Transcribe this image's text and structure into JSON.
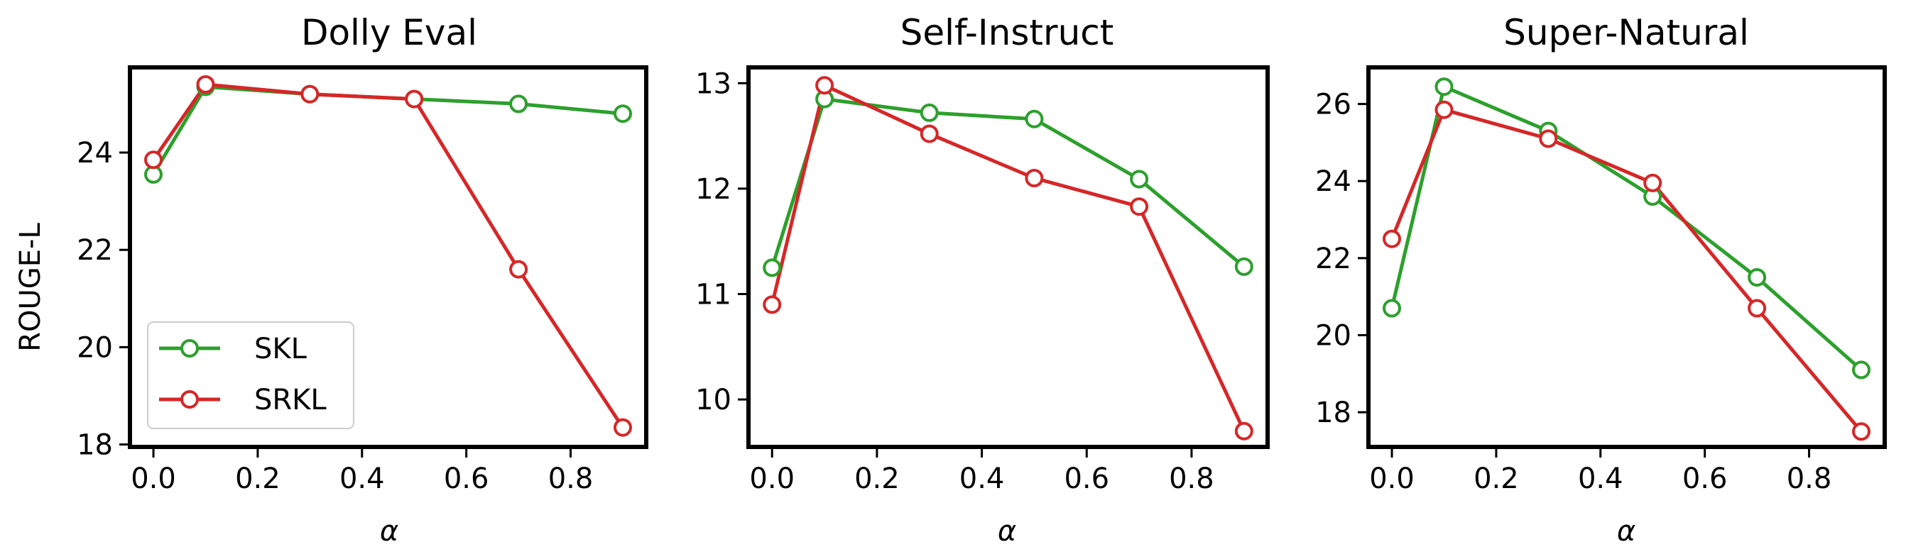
{
  "figure": {
    "ylabel": "ROUGE-L",
    "xlabel": "α"
  },
  "legend": {
    "entries": [
      {
        "name": "SKL",
        "color": "#2ca02c"
      },
      {
        "name": "SRKL",
        "color": "#d62728"
      }
    ]
  },
  "chart_data": [
    {
      "type": "line",
      "title": "Dolly Eval",
      "xlabel": "α",
      "ylabel": "ROUGE-L",
      "x": [
        0.0,
        0.1,
        0.3,
        0.5,
        0.7,
        0.9
      ],
      "xlim": [
        -0.045,
        0.945
      ],
      "ylim": [
        17.95,
        25.75
      ],
      "xticks": [
        0.0,
        0.2,
        0.4,
        0.6,
        0.8
      ],
      "xtick_labels": [
        "0.0",
        "0.2",
        "0.4",
        "0.6",
        "0.8"
      ],
      "yticks": [
        18,
        20,
        22,
        24
      ],
      "ytick_labels": [
        "18",
        "20",
        "22",
        "24"
      ],
      "legend": "lower-left",
      "grid": false,
      "series": [
        {
          "name": "SKL",
          "color": "#2ca02c",
          "values": [
            23.55,
            25.35,
            25.2,
            25.1,
            25.0,
            24.8
          ]
        },
        {
          "name": "SRKL",
          "color": "#d62728",
          "values": [
            23.85,
            25.4,
            25.2,
            25.1,
            21.6,
            18.35
          ]
        }
      ]
    },
    {
      "type": "line",
      "title": "Self-Instruct",
      "xlabel": "α",
      "ylabel": "",
      "x": [
        0.0,
        0.1,
        0.3,
        0.5,
        0.7,
        0.9
      ],
      "xlim": [
        -0.045,
        0.945
      ],
      "ylim": [
        9.55,
        13.15
      ],
      "xticks": [
        0.0,
        0.2,
        0.4,
        0.6,
        0.8
      ],
      "xtick_labels": [
        "0.0",
        "0.2",
        "0.4",
        "0.6",
        "0.8"
      ],
      "yticks": [
        10,
        11,
        12,
        13
      ],
      "ytick_labels": [
        "10",
        "11",
        "12",
        "13"
      ],
      "grid": false,
      "series": [
        {
          "name": "SKL",
          "color": "#2ca02c",
          "values": [
            11.25,
            12.85,
            12.72,
            12.66,
            12.09,
            11.26
          ]
        },
        {
          "name": "SRKL",
          "color": "#d62728",
          "values": [
            10.9,
            12.98,
            12.52,
            12.1,
            11.83,
            9.7
          ]
        }
      ]
    },
    {
      "type": "line",
      "title": "Super-Natural",
      "xlabel": "α",
      "ylabel": "",
      "x": [
        0.0,
        0.1,
        0.3,
        0.5,
        0.7,
        0.9
      ],
      "xlim": [
        -0.045,
        0.945
      ],
      "ylim": [
        17.1,
        26.95
      ],
      "xticks": [
        0.0,
        0.2,
        0.4,
        0.6,
        0.8
      ],
      "xtick_labels": [
        "0.0",
        "0.2",
        "0.4",
        "0.6",
        "0.8"
      ],
      "yticks": [
        18,
        20,
        22,
        24,
        26
      ],
      "ytick_labels": [
        "18",
        "20",
        "22",
        "24",
        "26"
      ],
      "grid": false,
      "series": [
        {
          "name": "SKL",
          "color": "#2ca02c",
          "values": [
            20.7,
            26.45,
            25.3,
            23.6,
            21.5,
            19.1
          ]
        },
        {
          "name": "SRKL",
          "color": "#d62728",
          "values": [
            22.5,
            25.85,
            25.1,
            23.95,
            20.7,
            17.5
          ]
        }
      ]
    }
  ]
}
